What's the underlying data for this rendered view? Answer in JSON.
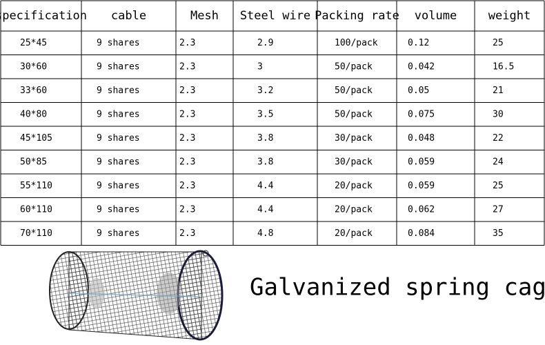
{
  "table": {
    "header": [
      "specification",
      "cable",
      "Mesh",
      "Steel wire",
      "Packing rate",
      "volume",
      "weight"
    ],
    "rows": [
      [
        "25*45",
        "9 shares",
        "2.3",
        "2.9",
        "100/pack",
        "0.12",
        "25"
      ],
      [
        "30*60",
        "9 shares",
        "2.3",
        "3",
        "50/pack",
        "0.042",
        "16.5"
      ],
      [
        "33*60",
        "9 shares",
        "2.3",
        "3.2",
        "50/pack",
        "0.05",
        "21"
      ],
      [
        "40*80",
        "9 shares",
        "2.3",
        "3.5",
        "50/pack",
        "0.075",
        "30"
      ],
      [
        "45*105",
        "9 shares",
        "2.3",
        "3.8",
        "30/pack",
        "0.048",
        "22"
      ],
      [
        "50*85",
        "9 shares",
        "2.3",
        "3.8",
        "30/pack",
        "0.059",
        "24"
      ],
      [
        "55*110",
        "9 shares",
        "2.3",
        "4.4",
        "20/pack",
        "0.059",
        "25"
      ],
      [
        "60*110",
        "9 shares",
        "2.3",
        "4.4",
        "20/pack",
        "0.062",
        "27"
      ],
      [
        "70*110",
        "9 shares",
        "2.3",
        "4.8",
        "20/pack",
        "0.084",
        "35"
      ]
    ]
  },
  "caption": "Galvanized spring cage"
}
